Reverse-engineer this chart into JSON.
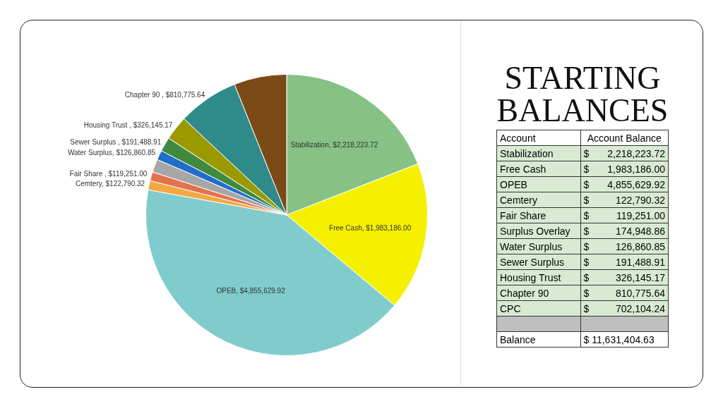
{
  "chart_data": [
    {
      "type": "pie",
      "categories": [
        "Stabilization, $2,218,223.72",
        "Free Cash, $1,983,186.00",
        "OPEB, $4,855,629.92",
        "Cemtery, $122,790.32",
        "Fair Share , $119,251.00",
        null,
        "Water Surplus, $126,860.85",
        "Sewer Surplus , $191,488.91",
        "Housing Trust , $326,145.17",
        "Chapter 90 , $810,775.64",
        null
      ],
      "values": [
        2218223.72,
        1983186.0,
        4855629.92,
        122790.32,
        119251.0,
        174948.86,
        126860.85,
        191488.91,
        326145.17,
        810775.64,
        702104.24
      ],
      "colors": [
        "#86c186",
        "#f5f000",
        "#80cccc",
        "#f4a742",
        "#e2734a",
        "#a6a6a6",
        "#1f6fc8",
        "#3f8a3f",
        "#9a9a00",
        "#2f8a8a",
        "#7a4a17"
      ]
    },
    {
      "type": "other",
      "title": "STARTING BALANCES",
      "annotations": [
        "Account",
        "Account Balance",
        "Stabilization",
        "$ 2,218,223.72",
        "Free Cash",
        "$ 1,983,186.00",
        "OPEB",
        "$ 4,855,629.92",
        "Cemtery",
        "$ 122,790.32",
        "Fair Share",
        "$ 119,251.00",
        "Surplus Overlay",
        "$ 174,948.86",
        "Water Surplus",
        "$ 126,860.85",
        "Sewer Surplus",
        "$ 191,488.91",
        "Housing Trust",
        "$ 326,145.17",
        "Chapter 90",
        "$ 810,775.64",
        "CPC",
        "$ 702,104.24",
        "Balance",
        "$ 11,631,404.63"
      ]
    }
  ]
}
